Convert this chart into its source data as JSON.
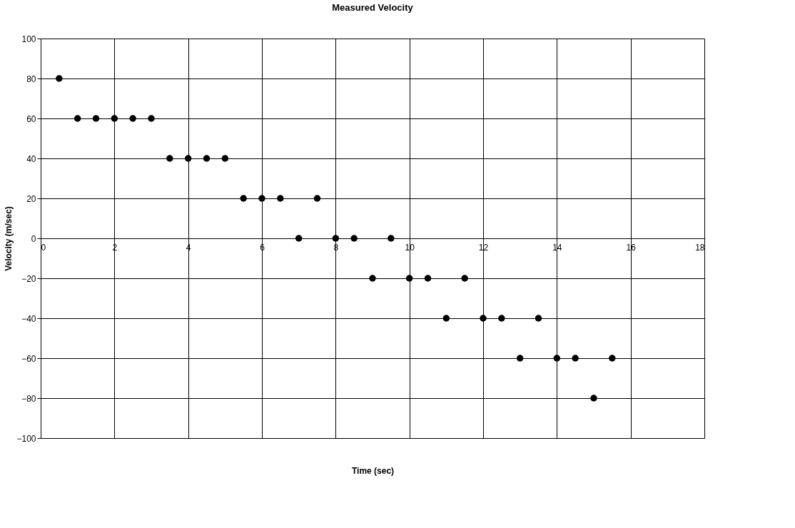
{
  "chart_data": {
    "type": "scatter",
    "title": "Measured Velocity",
    "xlabel": "Time (sec)",
    "ylabel": "Velocity (m/sec)",
    "x": [
      0.5,
      1,
      1.5,
      2,
      2.5,
      3,
      3.5,
      4,
      4.5,
      5,
      5.5,
      6,
      6.5,
      7,
      7.5,
      8,
      8.5,
      9,
      9.5,
      10,
      10.5,
      11,
      11.5,
      12,
      12.5,
      13,
      13.5,
      14,
      14.5,
      15,
      15.5
    ],
    "series": [
      {
        "color": "#000000",
        "values": [
          80,
          60,
          60,
          60,
          60,
          60,
          40,
          40,
          40,
          40,
          20,
          20,
          20,
          0,
          20,
          0,
          0,
          -20,
          0,
          -20,
          -20,
          -40,
          -20,
          -40,
          -40,
          -60,
          -40,
          -60,
          -60,
          -80,
          -60
        ]
      }
    ],
    "xlim": [
      0,
      18
    ],
    "xticks": [
      0,
      2,
      4,
      6,
      8,
      10,
      12,
      14,
      16,
      18
    ],
    "ylim": [
      -100,
      100
    ],
    "yticks": [
      -100,
      -80,
      -60,
      -40,
      -20,
      0,
      20,
      40,
      60,
      80,
      100
    ],
    "grid": true,
    "marker": "circle",
    "legend": false
  }
}
